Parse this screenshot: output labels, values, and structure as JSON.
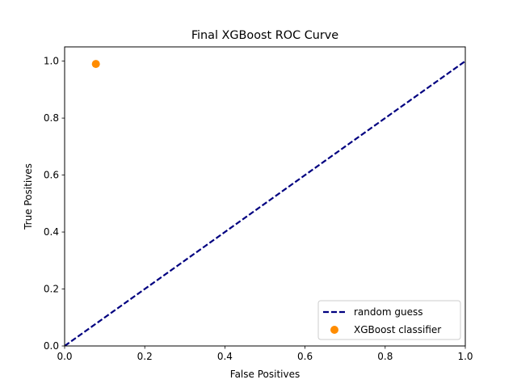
{
  "chart_data": {
    "type": "scatter",
    "title": "Final XGBoost ROC Curve",
    "xlabel": "False Positives",
    "ylabel": "True Positives",
    "xlim": [
      0.0,
      1.0
    ],
    "ylim": [
      0.0,
      1.05
    ],
    "xticks": [
      0.0,
      0.2,
      0.4,
      0.6,
      0.8,
      1.0
    ],
    "yticks": [
      0.0,
      0.2,
      0.4,
      0.6,
      0.8,
      1.0
    ],
    "xtick_labels": [
      "0.0",
      "0.2",
      "0.4",
      "0.6",
      "0.8",
      "1.0"
    ],
    "ytick_labels": [
      "0.0",
      "0.2",
      "0.4",
      "0.6",
      "0.8",
      "1.0"
    ],
    "grid": false,
    "legend_position": "lower-right",
    "series": [
      {
        "name": "random guess",
        "kind": "line",
        "style": "dashed",
        "color": "#000080",
        "x": [
          0.0,
          1.0
        ],
        "y": [
          0.0,
          1.0
        ]
      },
      {
        "name": "XGBoost classifier",
        "kind": "scatter",
        "color": "#ff8c00",
        "x": [
          0.078
        ],
        "y": [
          0.99
        ]
      }
    ]
  }
}
